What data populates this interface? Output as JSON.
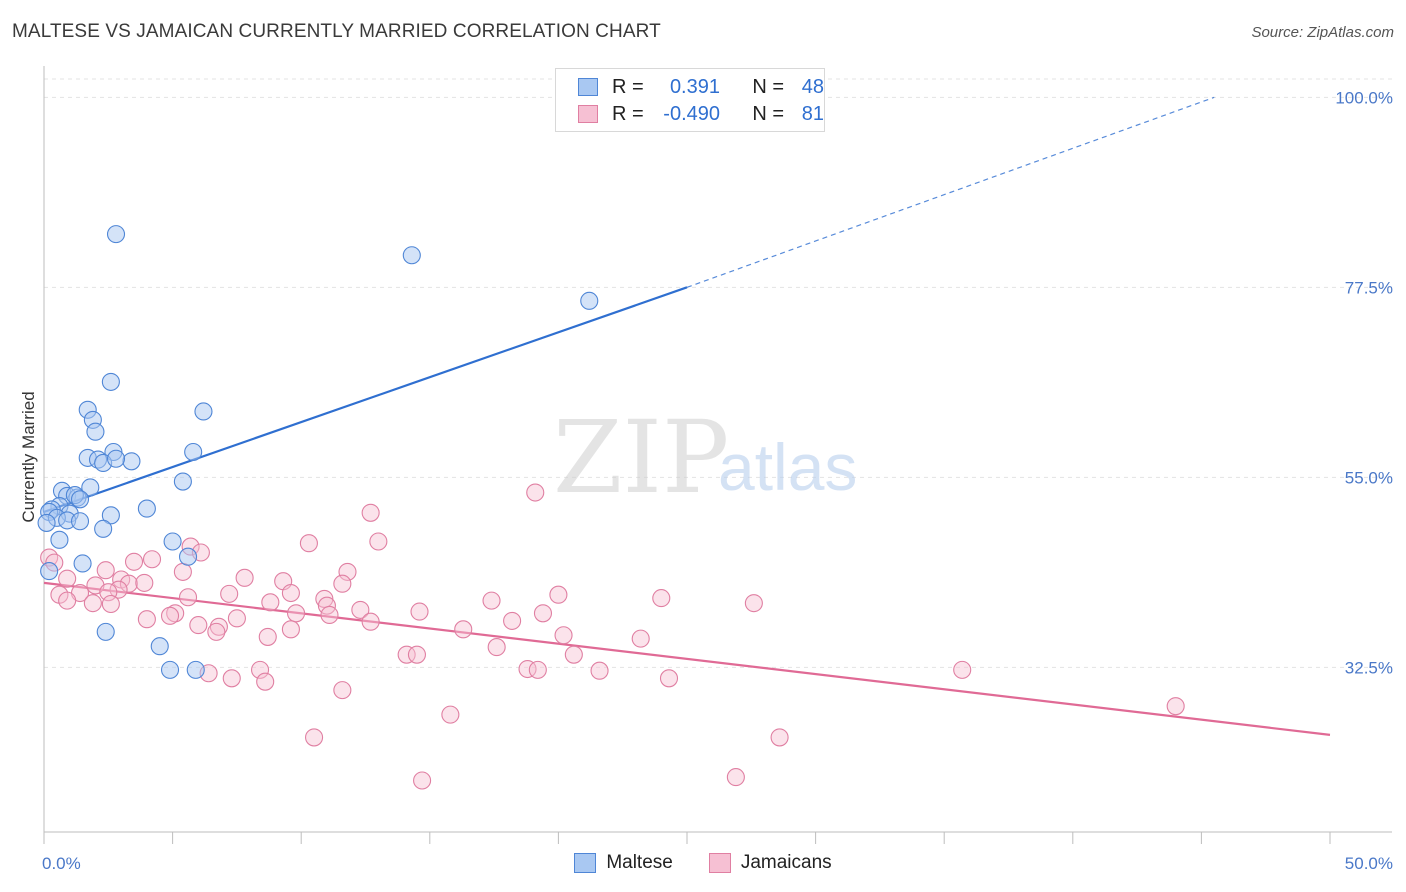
{
  "title": "MALTESE VS JAMAICAN CURRENTLY MARRIED CORRELATION CHART",
  "source": "Source: ZipAtlas.com",
  "watermark": {
    "zip": "ZIP",
    "atlas": "atlas"
  },
  "colors": {
    "maltese_fill": "#a9c8f2",
    "maltese_stroke": "#4f86d6",
    "maltese_line": "#2f6fd0",
    "jamaican_fill": "#f6c0d3",
    "jamaican_stroke": "#e07fa2",
    "jamaican_line": "#e06a95",
    "grid": "#e3e3e3",
    "tick_label": "#4a78c8"
  },
  "legend": {
    "rows": [
      {
        "r_label": "R =",
        "r_value": "0.391",
        "n_label": "N =",
        "n_value": "48"
      },
      {
        "r_label": "R =",
        "r_value": "-0.490",
        "n_label": "N =",
        "n_value": "81"
      }
    ],
    "series": [
      "Maltese",
      "Jamaicans"
    ]
  },
  "chart_data": {
    "type": "scatter",
    "title": "MALTESE VS JAMAICAN CURRENTLY MARRIED CORRELATION CHART",
    "xlabel": "",
    "ylabel": "Currently Married",
    "xlim": [
      0,
      50
    ],
    "ylim": [
      13,
      103
    ],
    "x_tick_labels": [
      "0.0%",
      "50.0%"
    ],
    "y_ticks": [
      32.5,
      55.0,
      77.5,
      100.0
    ],
    "y_tick_labels": [
      "32.5%",
      "55.0%",
      "77.5%",
      "100.0%"
    ],
    "grid": true,
    "legend_position": "top-center",
    "series": [
      {
        "name": "Maltese",
        "R": 0.391,
        "N": 48,
        "trend": {
          "x0": 0,
          "y0": 50.9,
          "x1": 25,
          "y1": 77.5,
          "dashed_to_x": 45.5,
          "dashed_to_y": 100
        },
        "points": [
          [
            2.8,
            83.8
          ],
          [
            14.3,
            81.3
          ],
          [
            21.2,
            75.9
          ],
          [
            2.6,
            66.3
          ],
          [
            1.7,
            63.0
          ],
          [
            6.2,
            62.8
          ],
          [
            1.9,
            61.8
          ],
          [
            2.0,
            60.4
          ],
          [
            5.8,
            58.0
          ],
          [
            2.7,
            58.0
          ],
          [
            1.7,
            57.3
          ],
          [
            2.1,
            57.1
          ],
          [
            2.3,
            56.7
          ],
          [
            3.4,
            56.9
          ],
          [
            2.8,
            57.2
          ],
          [
            5.4,
            54.5
          ],
          [
            0.7,
            53.4
          ],
          [
            1.8,
            53.8
          ],
          [
            0.9,
            52.8
          ],
          [
            1.3,
            52.6
          ],
          [
            1.2,
            52.9
          ],
          [
            1.4,
            52.4
          ],
          [
            0.6,
            51.6
          ],
          [
            0.3,
            51.2
          ],
          [
            0.2,
            50.9
          ],
          [
            1.0,
            50.7
          ],
          [
            2.6,
            50.5
          ],
          [
            4.0,
            51.3
          ],
          [
            0.5,
            50.2
          ],
          [
            0.9,
            49.9
          ],
          [
            1.4,
            49.8
          ],
          [
            0.1,
            49.6
          ],
          [
            2.3,
            48.9
          ],
          [
            0.6,
            47.6
          ],
          [
            5.0,
            47.4
          ],
          [
            5.6,
            45.6
          ],
          [
            1.5,
            44.8
          ],
          [
            0.2,
            43.9
          ],
          [
            2.4,
            36.7
          ],
          [
            4.5,
            35.0
          ],
          [
            4.9,
            32.2
          ],
          [
            5.9,
            32.2
          ]
        ]
      },
      {
        "name": "Jamaicans",
        "R": -0.49,
        "N": 81,
        "trend": {
          "x0": 0,
          "y0": 42.5,
          "x1": 50,
          "y1": 24.5
        },
        "points": [
          [
            19.1,
            53.2
          ],
          [
            12.7,
            50.8
          ],
          [
            10.3,
            47.2
          ],
          [
            13.0,
            47.4
          ],
          [
            5.7,
            46.8
          ],
          [
            6.1,
            46.1
          ],
          [
            4.2,
            45.3
          ],
          [
            3.5,
            45.0
          ],
          [
            0.2,
            45.5
          ],
          [
            0.4,
            44.9
          ],
          [
            2.4,
            44.0
          ],
          [
            5.4,
            43.8
          ],
          [
            11.8,
            43.8
          ],
          [
            7.8,
            43.1
          ],
          [
            0.9,
            43.0
          ],
          [
            3.0,
            42.9
          ],
          [
            9.3,
            42.7
          ],
          [
            11.6,
            42.4
          ],
          [
            3.3,
            42.4
          ],
          [
            2.0,
            42.2
          ],
          [
            3.9,
            42.5
          ],
          [
            2.9,
            41.7
          ],
          [
            0.6,
            41.1
          ],
          [
            2.5,
            41.4
          ],
          [
            1.4,
            41.3
          ],
          [
            7.2,
            41.2
          ],
          [
            9.6,
            41.3
          ],
          [
            20.0,
            41.1
          ],
          [
            24.0,
            40.7
          ],
          [
            17.4,
            40.4
          ],
          [
            10.9,
            40.6
          ],
          [
            5.6,
            40.8
          ],
          [
            8.8,
            40.2
          ],
          [
            0.9,
            40.4
          ],
          [
            1.9,
            40.1
          ],
          [
            2.6,
            40.0
          ],
          [
            27.6,
            40.1
          ],
          [
            11.0,
            39.8
          ],
          [
            12.3,
            39.3
          ],
          [
            9.8,
            38.9
          ],
          [
            14.6,
            39.1
          ],
          [
            19.4,
            38.9
          ],
          [
            11.1,
            38.7
          ],
          [
            5.1,
            38.9
          ],
          [
            7.5,
            38.3
          ],
          [
            4.9,
            38.6
          ],
          [
            4.0,
            38.2
          ],
          [
            18.2,
            38.0
          ],
          [
            12.7,
            37.9
          ],
          [
            6.0,
            37.5
          ],
          [
            6.8,
            37.3
          ],
          [
            9.6,
            37.0
          ],
          [
            16.3,
            37.0
          ],
          [
            6.7,
            36.7
          ],
          [
            20.2,
            36.3
          ],
          [
            8.7,
            36.1
          ],
          [
            23.2,
            35.9
          ],
          [
            17.6,
            34.9
          ],
          [
            14.1,
            34.0
          ],
          [
            14.5,
            34.0
          ],
          [
            20.6,
            34.0
          ],
          [
            18.8,
            32.3
          ],
          [
            19.2,
            32.2
          ],
          [
            21.6,
            32.1
          ],
          [
            8.4,
            32.2
          ],
          [
            6.4,
            31.8
          ],
          [
            7.3,
            31.2
          ],
          [
            8.6,
            30.8
          ],
          [
            24.3,
            31.2
          ],
          [
            35.7,
            32.2
          ],
          [
            11.6,
            29.8
          ],
          [
            15.8,
            26.9
          ],
          [
            44.0,
            27.9
          ],
          [
            10.5,
            24.2
          ],
          [
            28.6,
            24.2
          ],
          [
            14.7,
            19.1
          ],
          [
            26.9,
            19.5
          ]
        ]
      }
    ]
  }
}
